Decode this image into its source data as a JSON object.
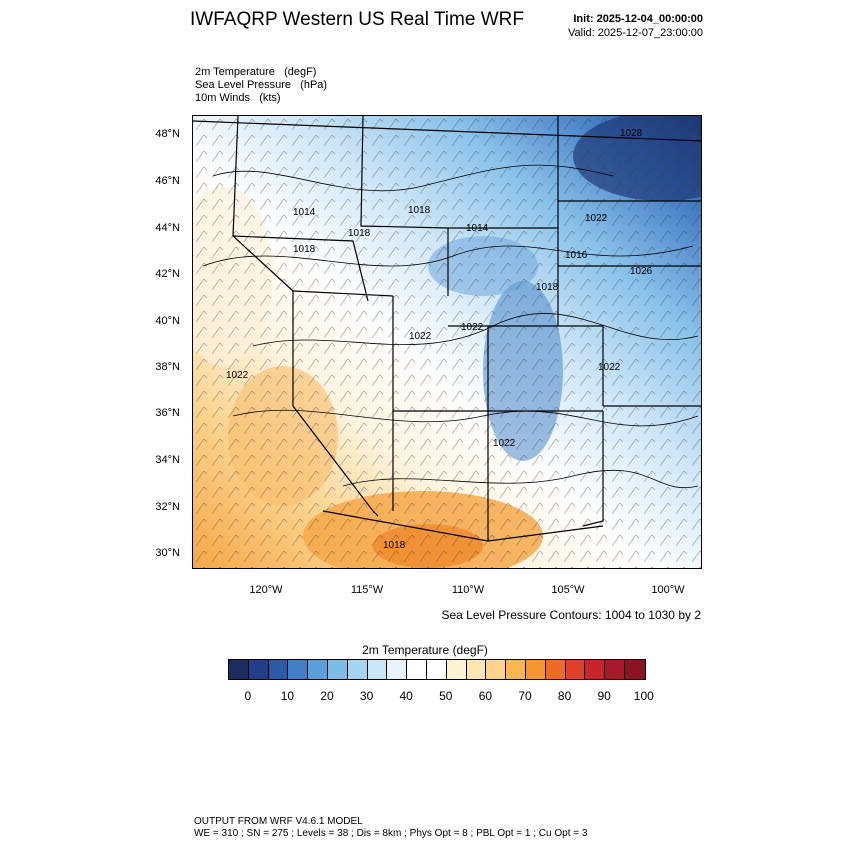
{
  "header": {
    "title": "IWFAQRP Western US Real Time WRF",
    "init": "Init: 2025-12-04_00:00:00",
    "valid": "Valid: 2025-12-07_23:00:00"
  },
  "fields": [
    {
      "name": "2m Temperature",
      "unit": "(degF)"
    },
    {
      "name": "Sea Level Pressure",
      "unit": "(hPa)"
    },
    {
      "name": "10m Winds",
      "unit": "(kts)"
    }
  ],
  "axes": {
    "lat_ticks": [
      "48°N",
      "46°N",
      "44°N",
      "42°N",
      "40°N",
      "38°N",
      "36°N",
      "34°N",
      "32°N",
      "30°N"
    ],
    "lon_ticks": [
      "120°W",
      "115°W",
      "110°W",
      "105°W",
      "100°W"
    ]
  },
  "contour_labels": [
    "1028",
    "1022",
    "1014",
    "1018",
    "1014",
    "1018",
    "1018",
    "1016",
    "1026",
    "1018",
    "1022",
    "1022",
    "1022",
    "1022",
    "1022",
    "1018"
  ],
  "slp_note": "Sea Level Pressure Contours: 1004 to 1030 by 2",
  "colorbar": {
    "title": "2m Temperature  (degF)",
    "labels": [
      "0",
      "10",
      "20",
      "30",
      "40",
      "50",
      "60",
      "70",
      "80",
      "90",
      "100"
    ],
    "colors": [
      "#1b2c5f",
      "#213f8a",
      "#2b5aa8",
      "#3f7fc6",
      "#5b9fd8",
      "#7fbbe7",
      "#a6d5f2",
      "#cbe6f7",
      "#e8f3fb",
      "#ffffff",
      "#ffffff",
      "#fdf3d2",
      "#fde7b0",
      "#fdd48a",
      "#fbb653",
      "#f79530",
      "#ee6a25",
      "#e0412a",
      "#c7252b",
      "#a9182a",
      "#8a1421"
    ]
  },
  "footer": {
    "line1": "OUTPUT FROM WRF V4.6.1 MODEL",
    "line2": "WE = 310 ; SN = 275 ; Levels = 38 ; Dis = 8km ; Phys Opt = 8 ; PBL Opt = 1 ; Cu Opt = 3"
  }
}
